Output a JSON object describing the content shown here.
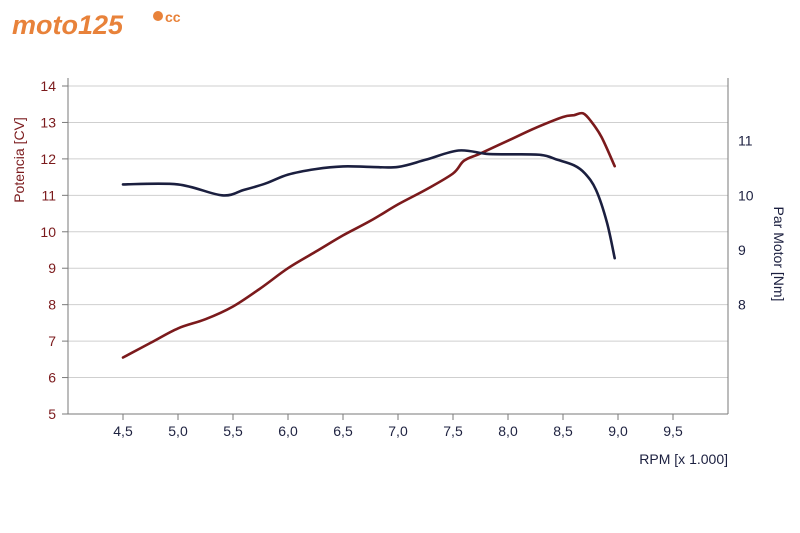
{
  "logo": {
    "text": "moto125",
    "suffix": "cc",
    "colors": {
      "primary": "#e8823a",
      "secondary": "#b9b9b9"
    }
  },
  "chart_data": {
    "type": "line",
    "title": "",
    "xlabel": "RPM [x 1.000]",
    "ylabel_left": "Potencia [CV]",
    "ylabel_right": "Par Motor [Nm]",
    "xlim": [
      4.0,
      10.0
    ],
    "ylim_left": [
      5,
      14
    ],
    "ylim_right": [
      6,
      12
    ],
    "x_ticks": [
      "4,5",
      "5,0",
      "5,5",
      "6,0",
      "6,5",
      "7,0",
      "7,5",
      "8,0",
      "8,5",
      "9,0",
      "9,5"
    ],
    "x_tick_values": [
      4.5,
      5.0,
      5.5,
      6.0,
      6.5,
      7.0,
      7.5,
      8.0,
      8.5,
      9.0,
      9.5
    ],
    "y_ticks_left": [
      5,
      6,
      7,
      8,
      9,
      10,
      11,
      12,
      13,
      14
    ],
    "y_ticks_right": [
      8,
      9,
      10,
      11
    ],
    "grid": true,
    "colors": {
      "power": "#7b1a1c",
      "torque": "#1b1f3f",
      "grid": "#cfcfcf"
    },
    "series": [
      {
        "axis": "left",
        "x": [
          4.5,
          4.75,
          5.0,
          5.25,
          5.5,
          5.75,
          6.0,
          6.25,
          6.5,
          6.75,
          7.0,
          7.25,
          7.5,
          7.6,
          7.75,
          8.0,
          8.25,
          8.5,
          8.6,
          8.68,
          8.75,
          8.85,
          8.97
        ],
        "y": [
          6.55,
          6.95,
          7.35,
          7.6,
          7.95,
          8.45,
          9.0,
          9.45,
          9.9,
          10.3,
          10.75,
          11.15,
          11.6,
          11.95,
          12.15,
          12.5,
          12.85,
          13.15,
          13.2,
          13.25,
          13.05,
          12.6,
          11.8
        ]
      },
      {
        "axis": "right",
        "x": [
          4.5,
          5.0,
          5.4,
          5.6,
          5.8,
          6.0,
          6.25,
          6.5,
          6.75,
          7.0,
          7.25,
          7.55,
          7.8,
          8.0,
          8.3,
          8.45,
          8.6,
          8.7,
          8.8,
          8.9,
          8.97
        ],
        "y": [
          10.2,
          10.2,
          10.0,
          10.1,
          10.22,
          10.38,
          10.48,
          10.53,
          10.52,
          10.52,
          10.65,
          10.82,
          10.76,
          10.75,
          10.74,
          10.65,
          10.55,
          10.4,
          10.1,
          9.5,
          8.85
        ]
      }
    ]
  }
}
